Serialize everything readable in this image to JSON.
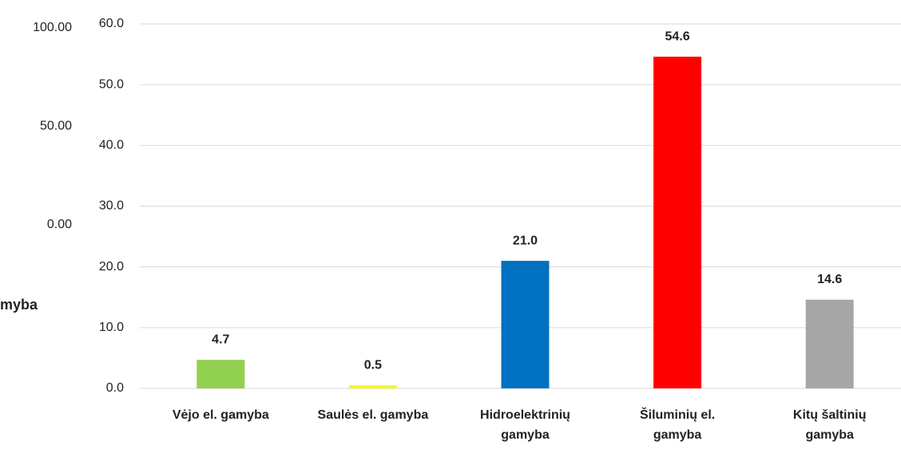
{
  "chart_data": [
    {
      "type": "bar",
      "ylim": [
        0,
        100
      ],
      "yticks": [
        {
          "value": 0,
          "label": "0.00"
        },
        {
          "value": 50,
          "label": "50.00"
        },
        {
          "value": 100,
          "label": "100.00"
        }
      ],
      "xlabel": "myba"
    },
    {
      "type": "bar",
      "categories": [
        "Vėjo el. gamyba",
        "Saulės el. gamyba",
        "Hidroelektrinių gamyba",
        "Šiluminių el. gamyba",
        "Kitų  šaltinių gamyba"
      ],
      "values": [
        4.7,
        0.5,
        21.0,
        54.6,
        14.6
      ],
      "value_labels": [
        "4.7",
        "0.5",
        "21.0",
        "54.6",
        "14.6"
      ],
      "colors": [
        "#92d050",
        "#f7f71e",
        "#0070c0",
        "#ff0000",
        "#a6a6a6"
      ],
      "ylim": [
        0,
        60
      ],
      "yticks": [
        {
          "value": 0,
          "label": "0.0"
        },
        {
          "value": 10,
          "label": "10.0"
        },
        {
          "value": 20,
          "label": "20.0"
        },
        {
          "value": 30,
          "label": "30.0"
        },
        {
          "value": 40,
          "label": "40.0"
        },
        {
          "value": 50,
          "label": "50.0"
        },
        {
          "value": 60,
          "label": "60.0"
        }
      ],
      "grid": true
    }
  ]
}
